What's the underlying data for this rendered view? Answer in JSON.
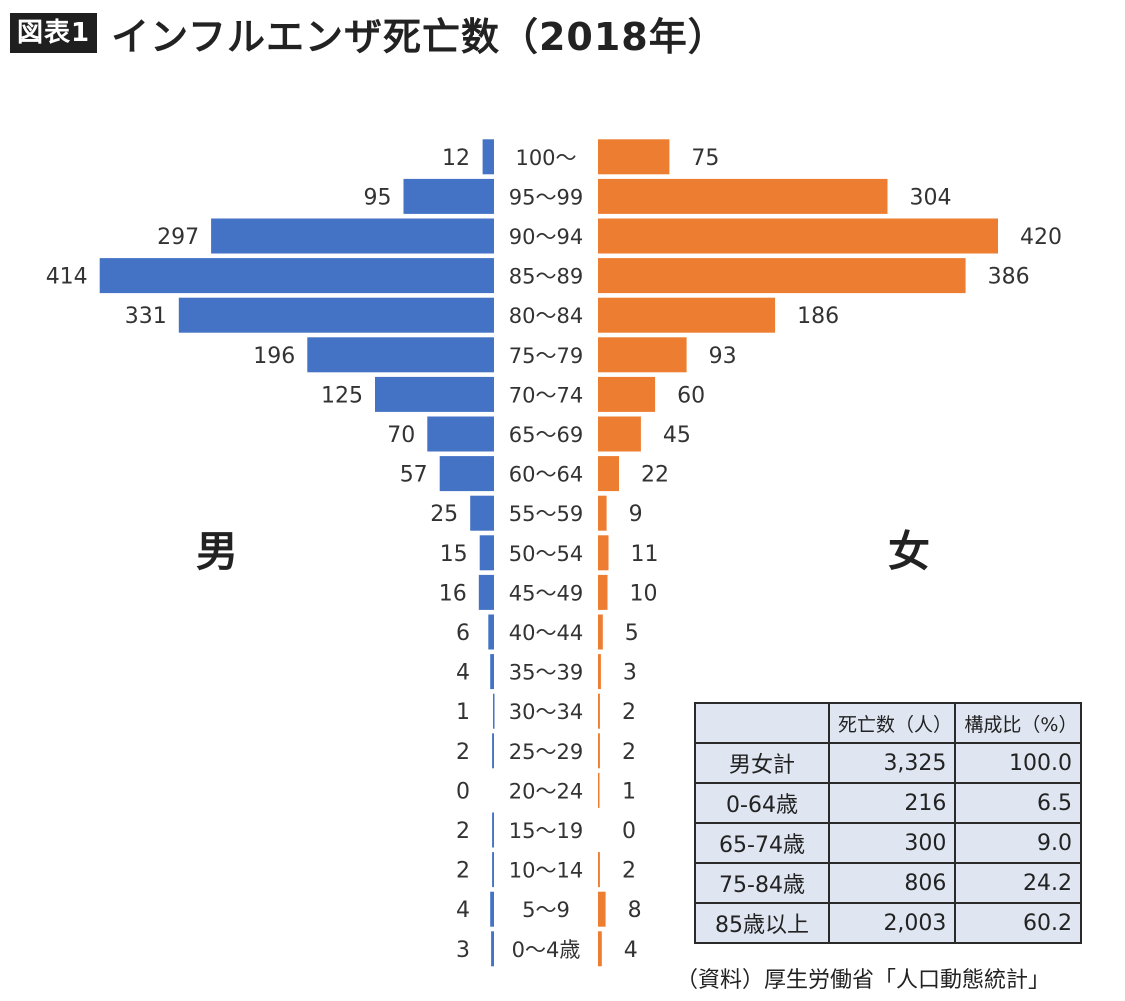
{
  "header": {
    "badge": "図表1",
    "title": "インフルエンザ死亡数（2018年）"
  },
  "side_labels": {
    "male": "男",
    "female": "女"
  },
  "colors": {
    "male": "#4472c4",
    "female": "#ed7d31"
  },
  "chart_data": {
    "type": "bar",
    "orientation": "horizontal-population-pyramid",
    "categories": [
      "100～",
      "95～99",
      "90～94",
      "85～89",
      "80～84",
      "75～79",
      "70～74",
      "65～69",
      "60～64",
      "55～59",
      "50～54",
      "45～49",
      "40～44",
      "35～39",
      "30～34",
      "25～29",
      "20～24",
      "15～19",
      "10～14",
      "5～9",
      "0～4歳"
    ],
    "series": [
      {
        "name": "男",
        "values": [
          12,
          95,
          297,
          414,
          331,
          196,
          125,
          70,
          57,
          25,
          15,
          16,
          6,
          4,
          1,
          2,
          0,
          2,
          2,
          4,
          3
        ]
      },
      {
        "name": "女",
        "values": [
          75,
          304,
          420,
          386,
          186,
          93,
          60,
          45,
          22,
          9,
          11,
          10,
          5,
          3,
          2,
          2,
          1,
          0,
          2,
          8,
          4
        ]
      }
    ],
    "title": "インフルエンザ死亡数（2018年）",
    "xlabel": "",
    "ylabel": "",
    "legend": "none"
  },
  "summary_table": {
    "headers": [
      "",
      "死亡数（人）",
      "構成比（%）"
    ],
    "rows": [
      [
        "男女計",
        "3,325",
        "100.0"
      ],
      [
        "0-64歳",
        "216",
        "6.5"
      ],
      [
        "65-74歳",
        "300",
        "9.0"
      ],
      [
        "75-84歳",
        "806",
        "24.2"
      ],
      [
        "85歳以上",
        "2,003",
        "60.2"
      ]
    ]
  },
  "source": "（資料）厚生労働省「人口動態統計」"
}
